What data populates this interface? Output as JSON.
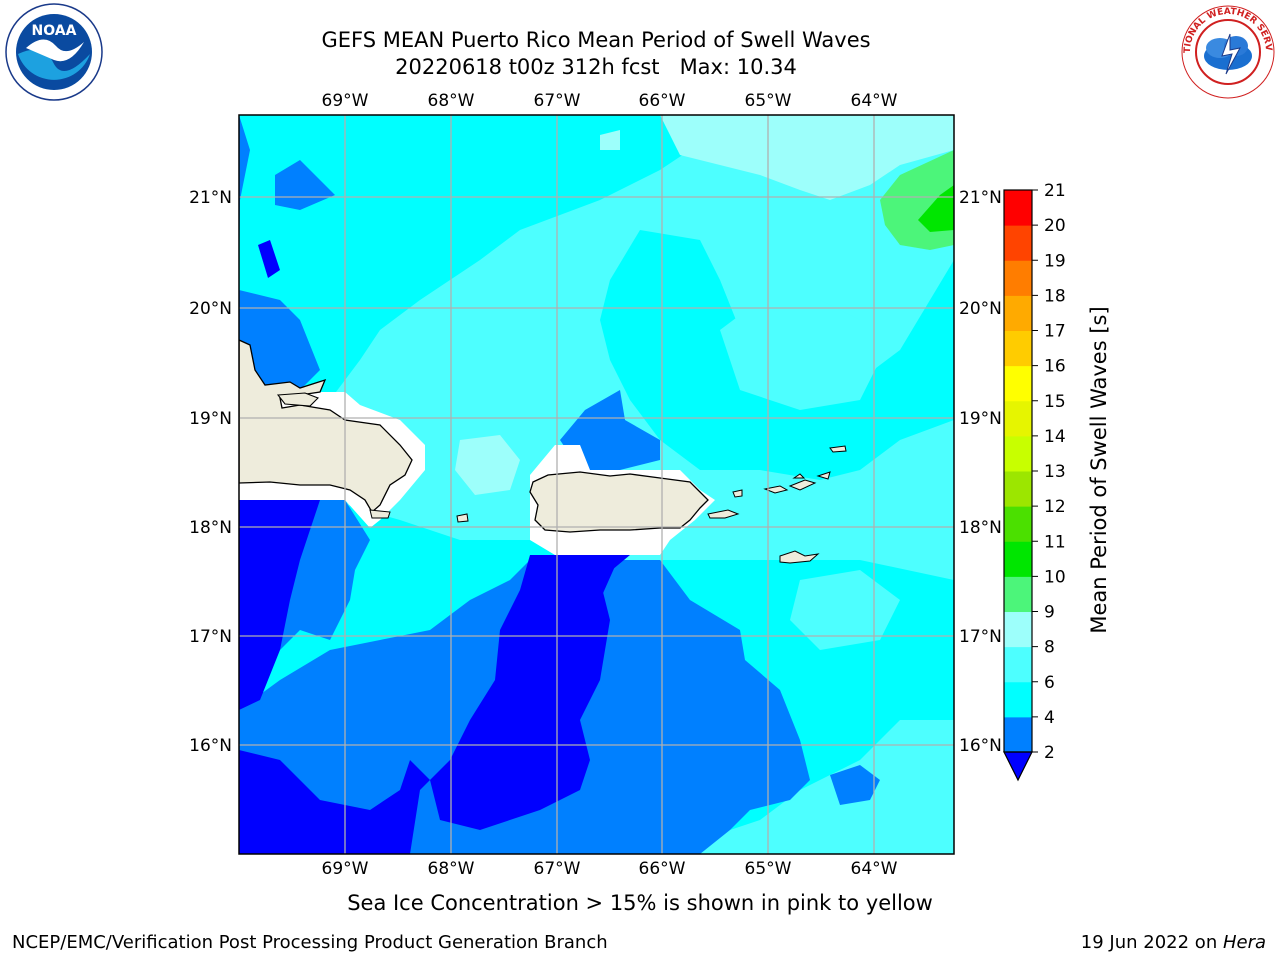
{
  "title": {
    "line1": "GEFS MEAN Puerto Rico Mean Period of Swell Waves",
    "line2": "20220618 t00z 312h fcst   Max: 10.34"
  },
  "map": {
    "lon_labels": [
      "69°W",
      "68°W",
      "67°W",
      "66°W",
      "65°W",
      "64°W"
    ],
    "lat_labels": [
      "21°N",
      "20°N",
      "19°N",
      "18°N",
      "17°N",
      "16°N"
    ],
    "land_color": "#eeecdc",
    "grid_color": "#b0b0b0"
  },
  "colorbar": {
    "label": "Mean Period of Swell Waves [s]",
    "ticks": [
      "2",
      "4",
      "6",
      "8",
      "9",
      "10",
      "11",
      "12",
      "13",
      "14",
      "15",
      "16",
      "17",
      "18",
      "19",
      "20",
      "21"
    ],
    "colors": [
      "#0000ff",
      "#0080ff",
      "#00ffff",
      "#4dffff",
      "#9dfffb",
      "#4cf57a",
      "#00e600",
      "#4be000",
      "#9ce600",
      "#c8ff00",
      "#e6f500",
      "#ffff00",
      "#ffcc00",
      "#ffaa00",
      "#ff7d00",
      "#ff4400",
      "#ff0000"
    ]
  },
  "notes": {
    "ice": "Sea Ice Concentration > 15% is shown in pink to yellow"
  },
  "footer": {
    "left": "NCEP/EMC/Verification Post Processing Product Generation Branch",
    "right_date": "19 Jun 2022 on ",
    "right_host": "Hera"
  },
  "logos": {
    "noaa_text": "NOAA",
    "nws_text": "NATIONAL WEATHER SERVICE"
  }
}
